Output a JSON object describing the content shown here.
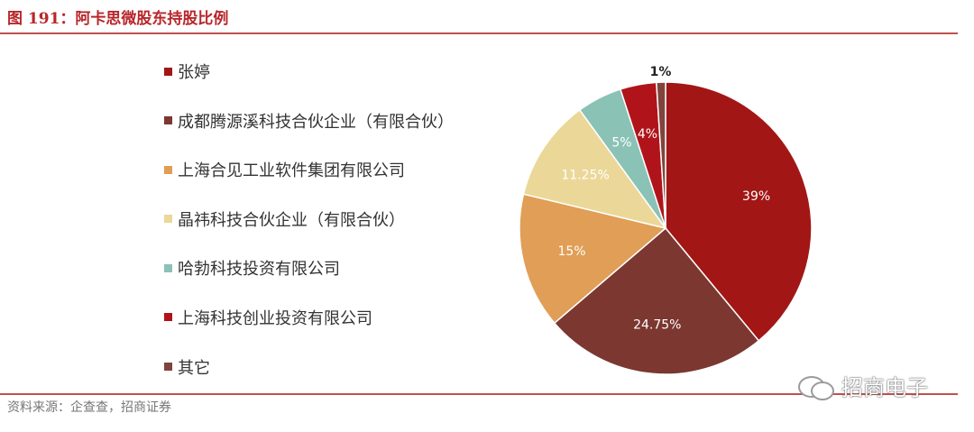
{
  "figure": {
    "title": "图 191：阿卡思微股东持股比例",
    "source": "资料来源：企查查，招商证券"
  },
  "watermark": {
    "text": "招商电子",
    "icon": "wechat-icon"
  },
  "chart_data": {
    "type": "pie",
    "legend_position": "left",
    "slices": [
      {
        "label": "张婷",
        "value": 39,
        "value_label": "39%",
        "color": "#a31616"
      },
      {
        "label": "成都腾源溪科技合伙企业（有限合伙）",
        "value": 24.75,
        "value_label": "24.75%",
        "color": "#7b3730"
      },
      {
        "label": "上海合见工业软件集团有限公司",
        "value": 15,
        "value_label": "15%",
        "color": "#e09e56"
      },
      {
        "label": "晶祎科技合伙企业（有限合伙）",
        "value": 11.25,
        "value_label": "11.25%",
        "color": "#ebd898"
      },
      {
        "label": "哈勃科技投资有限公司",
        "value": 5,
        "value_label": "5%",
        "color": "#8bc2b6"
      },
      {
        "label": "上海科技创业投资有限公司",
        "value": 4,
        "value_label": "4%",
        "color": "#b0141a"
      },
      {
        "label": "其它",
        "value": 1,
        "value_label": "1%",
        "color": "#80443d"
      }
    ]
  }
}
